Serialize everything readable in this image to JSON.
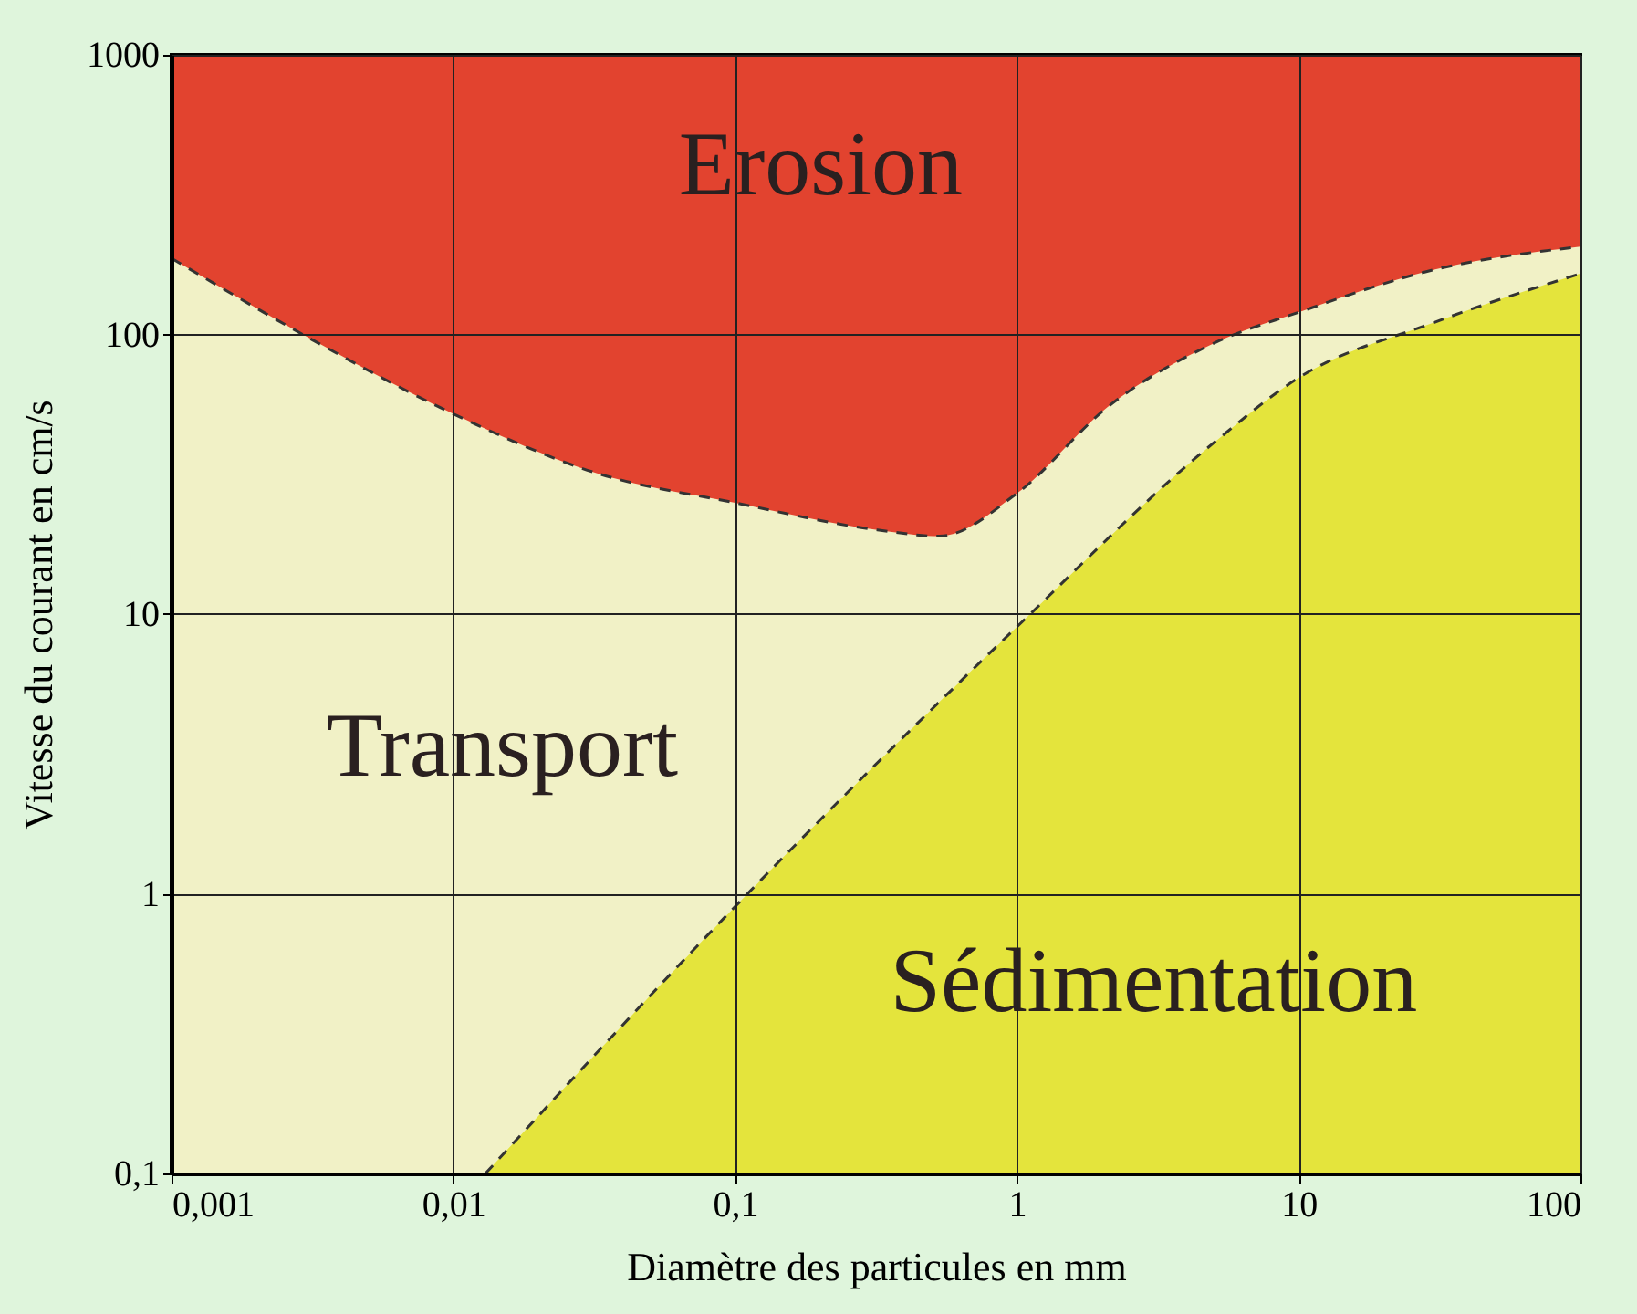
{
  "chart_data": {
    "type": "area",
    "xlabel": "Diamètre des particules en mm",
    "ylabel": "Vitesse du courant en cm/s",
    "log": "xy",
    "grid": true,
    "xlim": [
      0.001,
      100
    ],
    "ylim": [
      0.1,
      1000
    ],
    "xticks": [
      {
        "value": 0.001,
        "label": "0,001"
      },
      {
        "value": 0.01,
        "label": "0,01"
      },
      {
        "value": 0.1,
        "label": "0,1"
      },
      1,
      10,
      100
    ],
    "yticks": [
      {
        "value": 0.1,
        "label": "0,1"
      },
      1,
      10,
      100,
      1000
    ],
    "series": [
      {
        "color": "#e2432f",
        "line_style": "solid",
        "x": [
          0.001,
          100
        ],
        "values": [
          1000,
          1000
        ]
      },
      {
        "color": "#f1f1c6",
        "line_style": "dashed",
        "x": [
          0.001,
          0.0032,
          0.01,
          0.032,
          0.1,
          0.32,
          0.53,
          1,
          2.1,
          5,
          10,
          30,
          100
        ],
        "values": [
          187,
          95,
          52,
          32,
          25,
          20,
          19,
          27,
          55,
          93,
          120,
          170,
          206
        ]
      },
      {
        "color": "#e4e43c",
        "line_style": "dashed",
        "x": [
          0.013,
          0.1,
          1,
          5,
          10,
          30,
          100
        ],
        "values": [
          0.1,
          0.9,
          9,
          41,
          70,
          110,
          165
        ]
      }
    ],
    "annotations": [
      "Erosion",
      "Transport",
      "Sédimentation"
    ]
  }
}
